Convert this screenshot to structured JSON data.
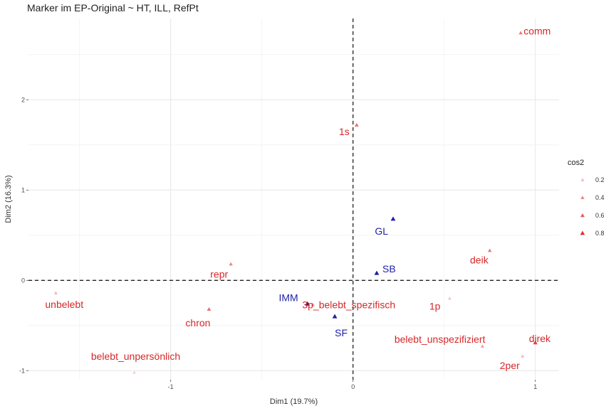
{
  "chart_data": {
    "type": "scatter",
    "title": "Marker im EP-Original ~ HT, ILL, RefPt",
    "xlabel": "Dim1 (19.7%)",
    "ylabel": "Dim2 (16.3%)",
    "xlim": [
      -1.78,
      1.13
    ],
    "ylim": [
      -1.1,
      2.9
    ],
    "xticks": [
      -1,
      0,
      1
    ],
    "yticks": [
      -1,
      0,
      1,
      2
    ],
    "grid": true,
    "reference_lines": {
      "x": 0,
      "y": 0,
      "style": "dashed"
    },
    "legend": {
      "title": "cos2",
      "position": "right",
      "entries": [
        {
          "label": "0.2",
          "value": 0.2
        },
        {
          "label": "0.4",
          "value": 0.4
        },
        {
          "label": "0.6",
          "value": 0.6
        },
        {
          "label": "0.8",
          "value": 0.8
        }
      ]
    },
    "colors": {
      "group_red": "#d62728",
      "group_blue": "#1f1fa8"
    },
    "series": [
      {
        "group": "red",
        "points": [
          {
            "label": "comm",
            "x": 0.92,
            "y": 2.74,
            "cos2": 0.45
          },
          {
            "label": "1s",
            "x": 0.02,
            "y": 1.72,
            "cos2": 0.5
          },
          {
            "label": "deik",
            "x": 0.75,
            "y": 0.33,
            "cos2": 0.45
          },
          {
            "label": "repr",
            "x": -0.67,
            "y": 0.18,
            "cos2": 0.4
          },
          {
            "label": "unbelebt",
            "x": -1.63,
            "y": -0.14,
            "cos2": 0.2
          },
          {
            "label": "chron",
            "x": -0.79,
            "y": -0.32,
            "cos2": 0.5
          },
          {
            "label": "3p_belebt_spezifisch",
            "x": -0.22,
            "y": -0.27,
            "cos2": 0.35
          },
          {
            "label": "1p",
            "x": 0.53,
            "y": -0.2,
            "cos2": 0.15
          },
          {
            "label": "belebt_unspezifiziert",
            "x": 0.71,
            "y": -0.73,
            "cos2": 0.3
          },
          {
            "label": "direk",
            "x": 1.0,
            "y": -0.69,
            "cos2": 0.7
          },
          {
            "label": "2per",
            "x": 0.93,
            "y": -0.84,
            "cos2": 0.2
          },
          {
            "label": "belebt_unpersönlich",
            "x": -1.2,
            "y": -1.02,
            "cos2": 0.1
          }
        ]
      },
      {
        "group": "blue",
        "points": [
          {
            "label": "GL",
            "x": 0.22,
            "y": 0.68,
            "cos2": 0.85
          },
          {
            "label": "SB",
            "x": 0.13,
            "y": 0.08,
            "cos2": 0.85
          },
          {
            "label": "IMM",
            "x": -0.25,
            "y": -0.26,
            "cos2": 0.85
          },
          {
            "label": "SF",
            "x": -0.1,
            "y": -0.4,
            "cos2": 0.85
          }
        ]
      }
    ]
  }
}
